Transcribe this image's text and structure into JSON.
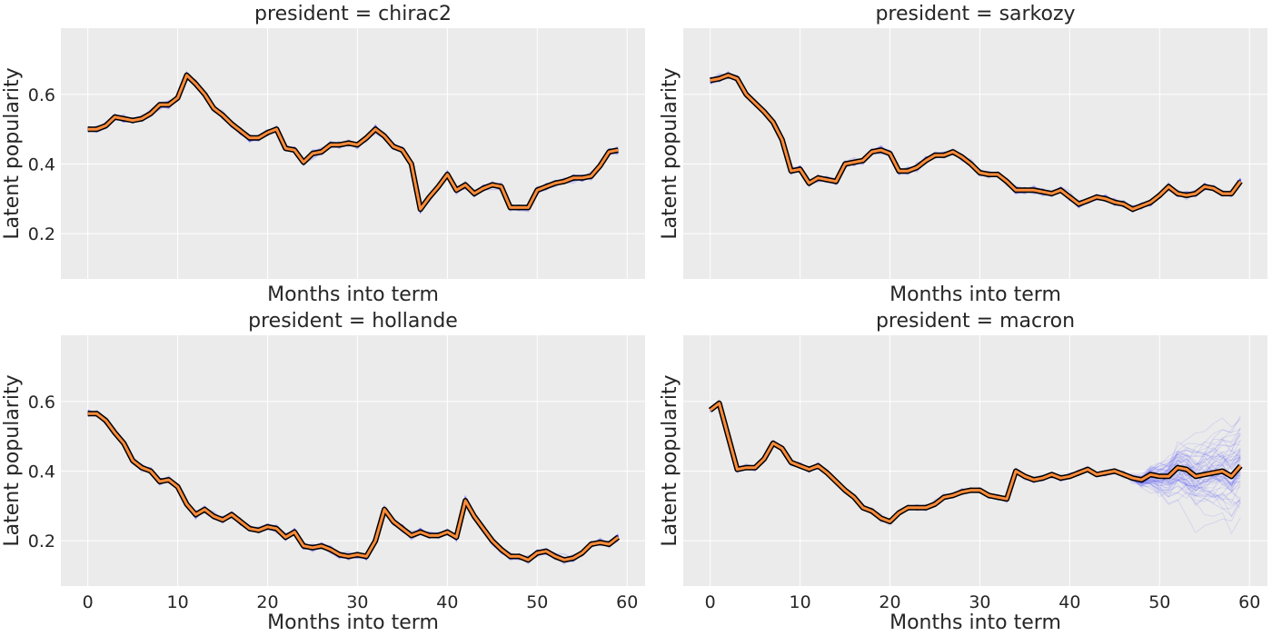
{
  "chart_data": [
    {
      "type": "line",
      "title": "president = chirac2",
      "xlabel": "Months into term",
      "ylabel": "Latent popularity",
      "xlim": [
        -3,
        62
      ],
      "ylim": [
        0.07,
        0.79
      ],
      "xticks": [
        0,
        10,
        20,
        30,
        40,
        50,
        60
      ],
      "yticks": [
        0.2,
        0.4,
        0.6
      ],
      "show_x_ticklabels": false,
      "show_y_ticklabels": true,
      "grid": true,
      "x_start": 0,
      "mean": [
        0.5,
        0.5,
        0.51,
        0.535,
        0.53,
        0.525,
        0.53,
        0.545,
        0.57,
        0.57,
        0.59,
        0.655,
        0.63,
        0.6,
        0.56,
        0.54,
        0.515,
        0.495,
        0.475,
        0.475,
        0.49,
        0.5,
        0.445,
        0.44,
        0.405,
        0.43,
        0.435,
        0.455,
        0.455,
        0.46,
        0.455,
        0.475,
        0.5,
        0.48,
        0.45,
        0.44,
        0.4,
        0.27,
        0.305,
        0.335,
        0.37,
        0.325,
        0.34,
        0.315,
        0.33,
        0.34,
        0.335,
        0.275,
        0.275,
        0.275,
        0.325,
        0.335,
        0.345,
        0.35,
        0.36,
        0.36,
        0.365,
        0.395,
        0.435,
        0.44
      ],
      "uncertainty_start": 60,
      "uncertainty_max": 0
    },
    {
      "type": "line",
      "title": "president = sarkozy",
      "xlabel": "Months into term",
      "ylabel": "Latent popularity",
      "xlim": [
        -3,
        62
      ],
      "ylim": [
        0.07,
        0.79
      ],
      "xticks": [
        0,
        10,
        20,
        30,
        40,
        50,
        60
      ],
      "yticks": [
        0.2,
        0.4,
        0.6
      ],
      "show_x_ticklabels": false,
      "show_y_ticklabels": false,
      "grid": true,
      "x_start": 0,
      "mean": [
        0.64,
        0.645,
        0.655,
        0.645,
        0.6,
        0.575,
        0.55,
        0.52,
        0.47,
        0.38,
        0.385,
        0.345,
        0.36,
        0.355,
        0.35,
        0.4,
        0.405,
        0.41,
        0.435,
        0.44,
        0.43,
        0.38,
        0.38,
        0.39,
        0.41,
        0.425,
        0.425,
        0.435,
        0.42,
        0.4,
        0.375,
        0.37,
        0.37,
        0.35,
        0.325,
        0.325,
        0.325,
        0.32,
        0.315,
        0.325,
        0.305,
        0.285,
        0.295,
        0.305,
        0.3,
        0.29,
        0.285,
        0.27,
        0.28,
        0.29,
        0.31,
        0.335,
        0.315,
        0.31,
        0.315,
        0.335,
        0.33,
        0.315,
        0.315,
        0.35
      ],
      "uncertainty_start": 60,
      "uncertainty_max": 0
    },
    {
      "type": "line",
      "title": "president = hollande",
      "xlabel": "Months into term",
      "ylabel": "Latent popularity",
      "xlim": [
        -3,
        62
      ],
      "ylim": [
        0.07,
        0.79
      ],
      "xticks": [
        0,
        10,
        20,
        30,
        40,
        50,
        60
      ],
      "yticks": [
        0.2,
        0.4,
        0.6
      ],
      "show_x_ticklabels": true,
      "show_y_ticklabels": true,
      "grid": true,
      "x_start": 0,
      "mean": [
        0.565,
        0.565,
        0.545,
        0.51,
        0.48,
        0.43,
        0.41,
        0.4,
        0.37,
        0.375,
        0.355,
        0.305,
        0.275,
        0.29,
        0.27,
        0.26,
        0.275,
        0.255,
        0.235,
        0.23,
        0.24,
        0.235,
        0.21,
        0.225,
        0.185,
        0.18,
        0.185,
        0.175,
        0.16,
        0.155,
        0.16,
        0.155,
        0.2,
        0.29,
        0.255,
        0.235,
        0.215,
        0.225,
        0.215,
        0.215,
        0.225,
        0.21,
        0.315,
        0.27,
        0.235,
        0.2,
        0.175,
        0.155,
        0.155,
        0.145,
        0.165,
        0.17,
        0.155,
        0.145,
        0.15,
        0.165,
        0.19,
        0.195,
        0.19,
        0.21
      ],
      "uncertainty_start": 60,
      "uncertainty_max": 0
    },
    {
      "type": "line",
      "title": "president = macron",
      "xlabel": "Months into term",
      "ylabel": "Latent popularity",
      "xlim": [
        -3,
        62
      ],
      "ylim": [
        0.07,
        0.79
      ],
      "xticks": [
        0,
        10,
        20,
        30,
        40,
        50,
        60
      ],
      "yticks": [
        0.2,
        0.4,
        0.6
      ],
      "show_x_ticklabels": true,
      "show_y_ticklabels": false,
      "grid": true,
      "x_start": 0,
      "mean": [
        0.575,
        0.595,
        0.5,
        0.405,
        0.41,
        0.41,
        0.435,
        0.48,
        0.465,
        0.425,
        0.415,
        0.405,
        0.415,
        0.395,
        0.37,
        0.345,
        0.325,
        0.295,
        0.285,
        0.265,
        0.255,
        0.28,
        0.295,
        0.295,
        0.295,
        0.305,
        0.325,
        0.33,
        0.34,
        0.345,
        0.345,
        0.33,
        0.325,
        0.32,
        0.4,
        0.385,
        0.375,
        0.38,
        0.39,
        0.38,
        0.385,
        0.395,
        0.405,
        0.39,
        0.395,
        0.4,
        0.39,
        0.38,
        0.375,
        0.39,
        0.385,
        0.385,
        0.41,
        0.405,
        0.385,
        0.39,
        0.395,
        0.4,
        0.385,
        0.415
      ],
      "uncertainty_start": 46,
      "uncertainty_max": 0.19
    }
  ],
  "colors": {
    "background": "#ebebeb",
    "grid": "#ffffff",
    "samples": "#0000ff",
    "mean_outline": "#000000",
    "mean": "#ff8c3a",
    "text": "#262626"
  }
}
